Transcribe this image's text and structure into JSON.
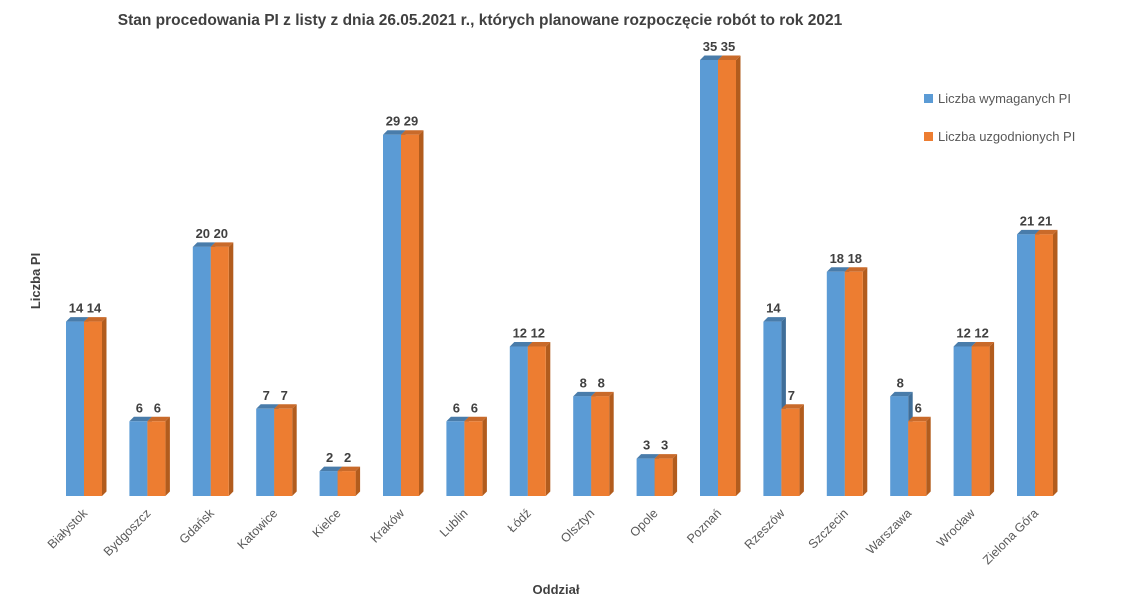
{
  "chart_data": {
    "type": "bar",
    "title": "Stan procedowania PI z listy z dnia 26.05.2021 r., których planowane rozpoczęcie robót to rok 2021",
    "xlabel": "Oddział",
    "ylabel": "Liczba PI",
    "categories": [
      "Białystok",
      "Bydgoszcz",
      "Gdańsk",
      "Katowice",
      "Kielce",
      "Kraków",
      "Lublin",
      "Łódź",
      "Olsztyn",
      "Opole",
      "Poznań",
      "Rzeszów",
      "Szczecin",
      "Warszawa",
      "Wrocław",
      "Zielona Góra"
    ],
    "series": [
      {
        "name": "Liczba wymaganych PI",
        "color": "#5B9BD5",
        "side_color": "#3F6E99",
        "values": [
          14,
          6,
          20,
          7,
          2,
          29,
          6,
          12,
          8,
          3,
          35,
          14,
          18,
          8,
          12,
          21
        ]
      },
      {
        "name": "Liczba uzgodnionych PI",
        "color": "#ED7D31",
        "side_color": "#B25C1D",
        "values": [
          14,
          6,
          20,
          7,
          2,
          29,
          6,
          12,
          8,
          3,
          35,
          7,
          18,
          6,
          12,
          21
        ]
      }
    ],
    "ylim": [
      0,
      35
    ],
    "grid": false,
    "legend_position": "top-right",
    "style": "3d-clustered-column"
  }
}
